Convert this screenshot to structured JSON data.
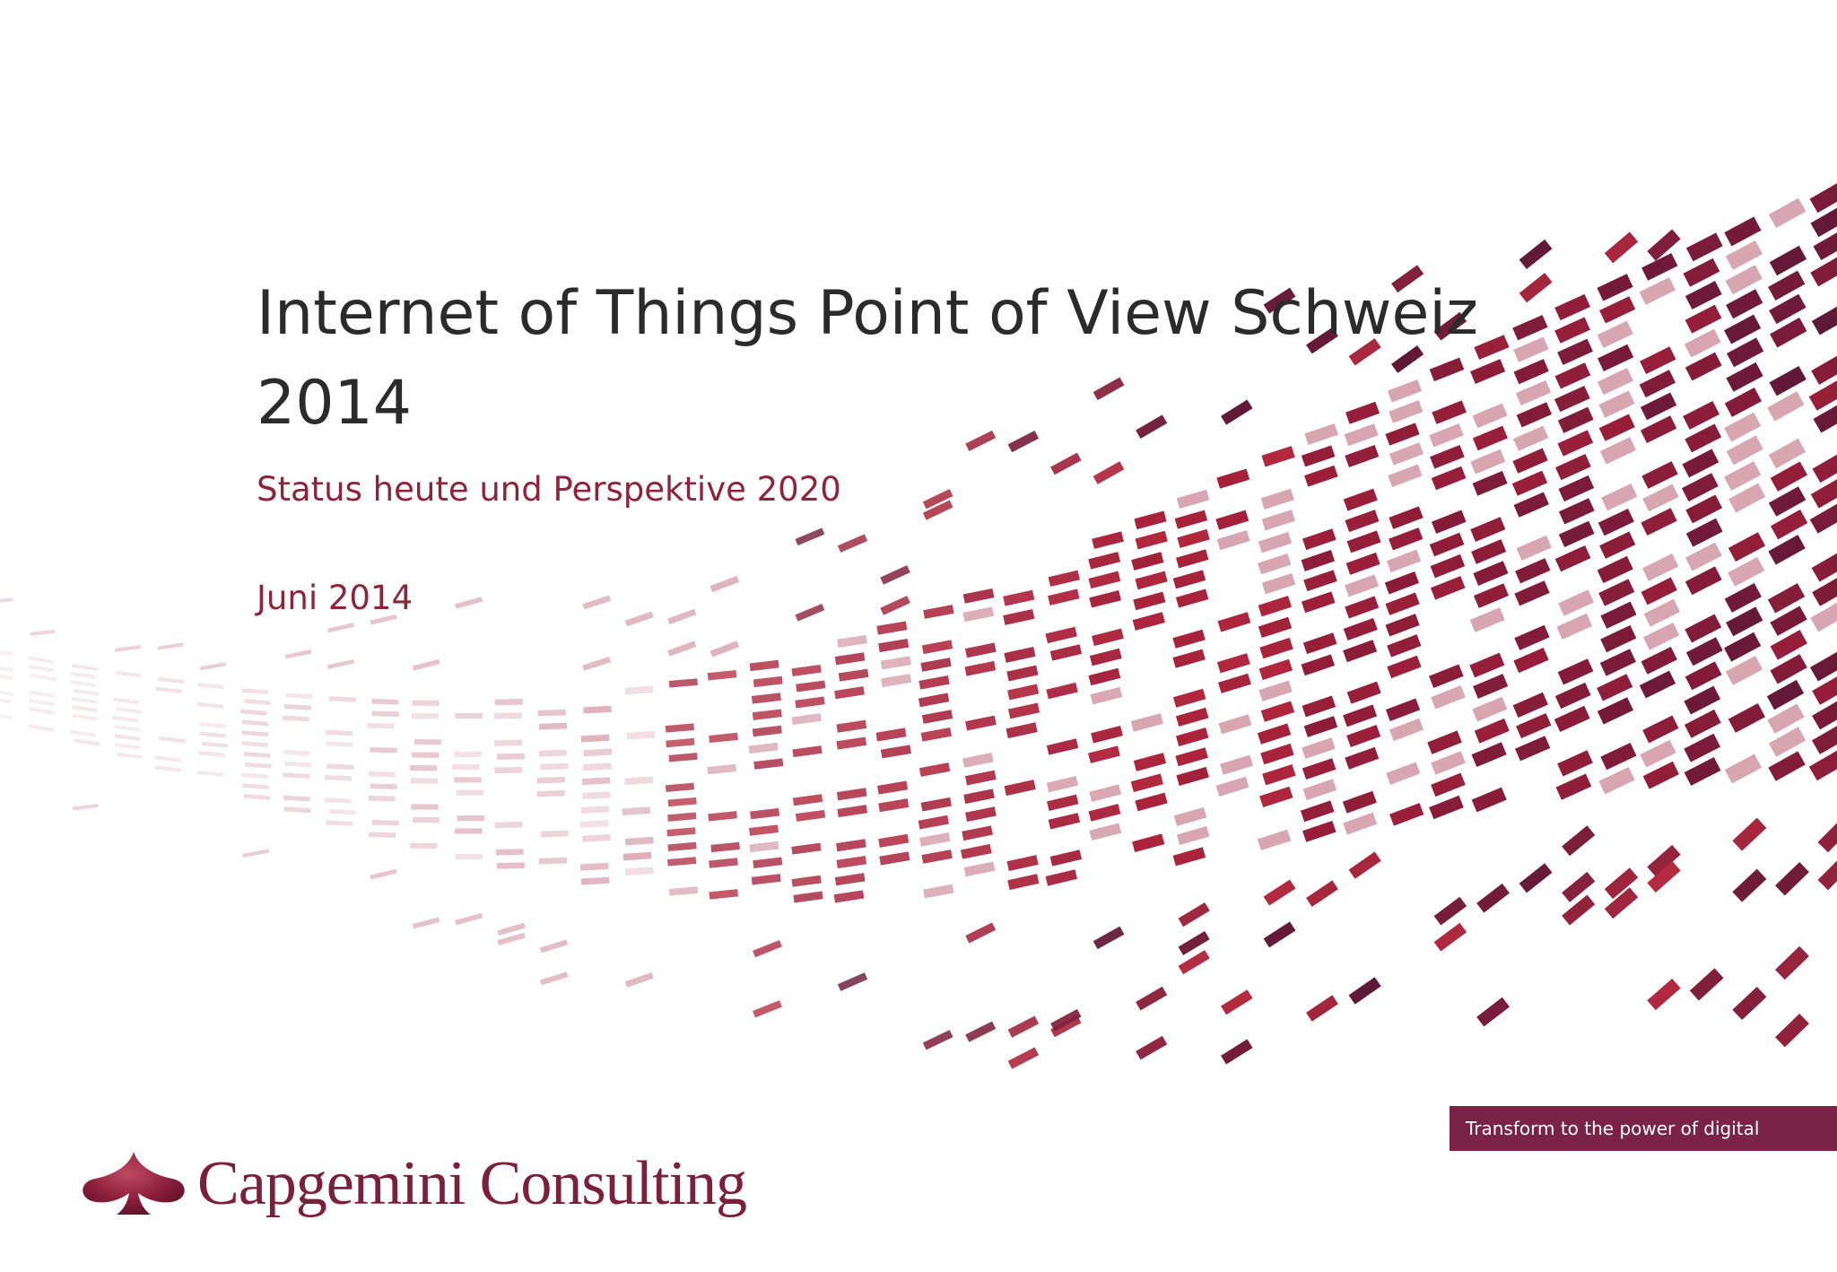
{
  "slide": {
    "title_line1": "Internet of Things Point of View Schweiz",
    "title_line2": "2014",
    "subtitle": "Status heute und Perspektive 2020",
    "date": "Juni 2014",
    "tagline": "Transform to the power of digital",
    "brand": "Capgemini Consulting"
  },
  "colors": {
    "accent": "#8e2339",
    "tagline_bg": "#7a2346",
    "title_text": "#2b2b2b",
    "wave_dark": "#5a1a38",
    "wave_mid": "#a3203a",
    "wave_light": "#e2bcc6"
  },
  "icons": {
    "logo_mark": "spade-icon",
    "background_graphic": "digital-wave-graphic"
  }
}
